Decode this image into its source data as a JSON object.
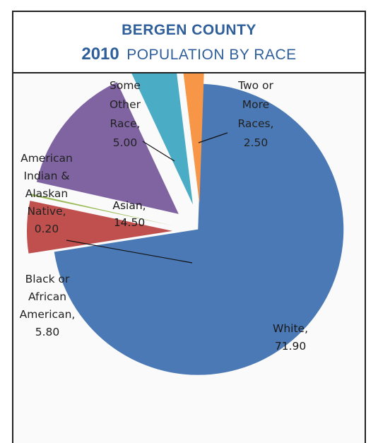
{
  "header": {
    "county": "BERGEN COUNTY",
    "year": "2010",
    "subtitle": "POPULATION BY RACE"
  },
  "chart_data": {
    "type": "pie",
    "exploded": true,
    "categories": [
      "White",
      "Black or African American",
      "American Indian & Alaskan Native",
      "Asian",
      "Some Other Race",
      "Two or More Races"
    ],
    "values": [
      71.9,
      5.8,
      0.2,
      14.5,
      5.0,
      2.5
    ],
    "colors": [
      "#4a79b5",
      "#c0504d",
      "#9bbb59",
      "#8064a2",
      "#4bacc6",
      "#f79646"
    ],
    "data_labels": [
      [
        "White,",
        "71.90"
      ],
      [
        "Black or",
        "African",
        "American,",
        "5.80"
      ],
      [
        "American",
        "Indian &",
        "Alaskan",
        "Native,",
        "0.20"
      ],
      [
        "Asian,",
        "14.50"
      ],
      [
        "Some",
        "Other",
        "Race,",
        "5.00"
      ],
      [
        "Two or",
        "More",
        "Races,",
        "2.50"
      ]
    ],
    "label_placement": [
      "inside",
      "outside",
      "outside",
      "inside",
      "outside",
      "outside"
    ]
  }
}
